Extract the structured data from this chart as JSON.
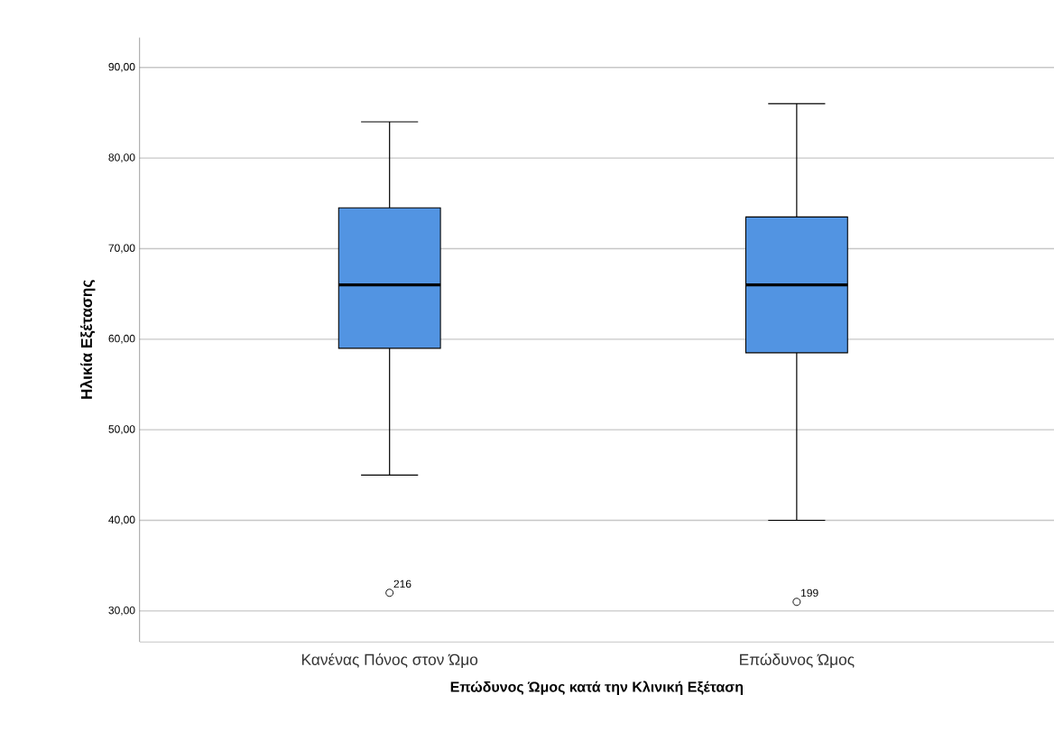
{
  "chart_data": {
    "type": "box",
    "xlabel": "Επώδυνος Ώμος κατά την Κλινική Εξέταση",
    "ylabel": "Ηλικία Εξέτασης",
    "categories": [
      "Κανένας Πόνος στον Ώμο",
      "Επώδυνος Ώμος"
    ],
    "boxes": [
      {
        "low": 45,
        "q1": 59,
        "median": 66,
        "q3": 74.5,
        "high": 84,
        "outliers": [
          32
        ]
      },
      {
        "low": 40,
        "q1": 58.5,
        "median": 66,
        "q3": 73.5,
        "high": 86,
        "outliers": [
          31
        ]
      }
    ],
    "color": "#5294e2",
    "ylim": [
      26.6,
      93.3
    ],
    "yticks": [
      {
        "value": 30,
        "label": "30,00"
      },
      {
        "value": 40,
        "label": "40,00"
      },
      {
        "value": 50,
        "label": "50,00"
      },
      {
        "value": 60,
        "label": "60,00"
      },
      {
        "value": 70,
        "label": "70,00"
      },
      {
        "value": 80,
        "label": "80,00"
      },
      {
        "value": 90,
        "label": "90,00"
      }
    ],
    "grid": "y",
    "marker": "circle",
    "annotations": [
      "216",
      "199"
    ]
  }
}
